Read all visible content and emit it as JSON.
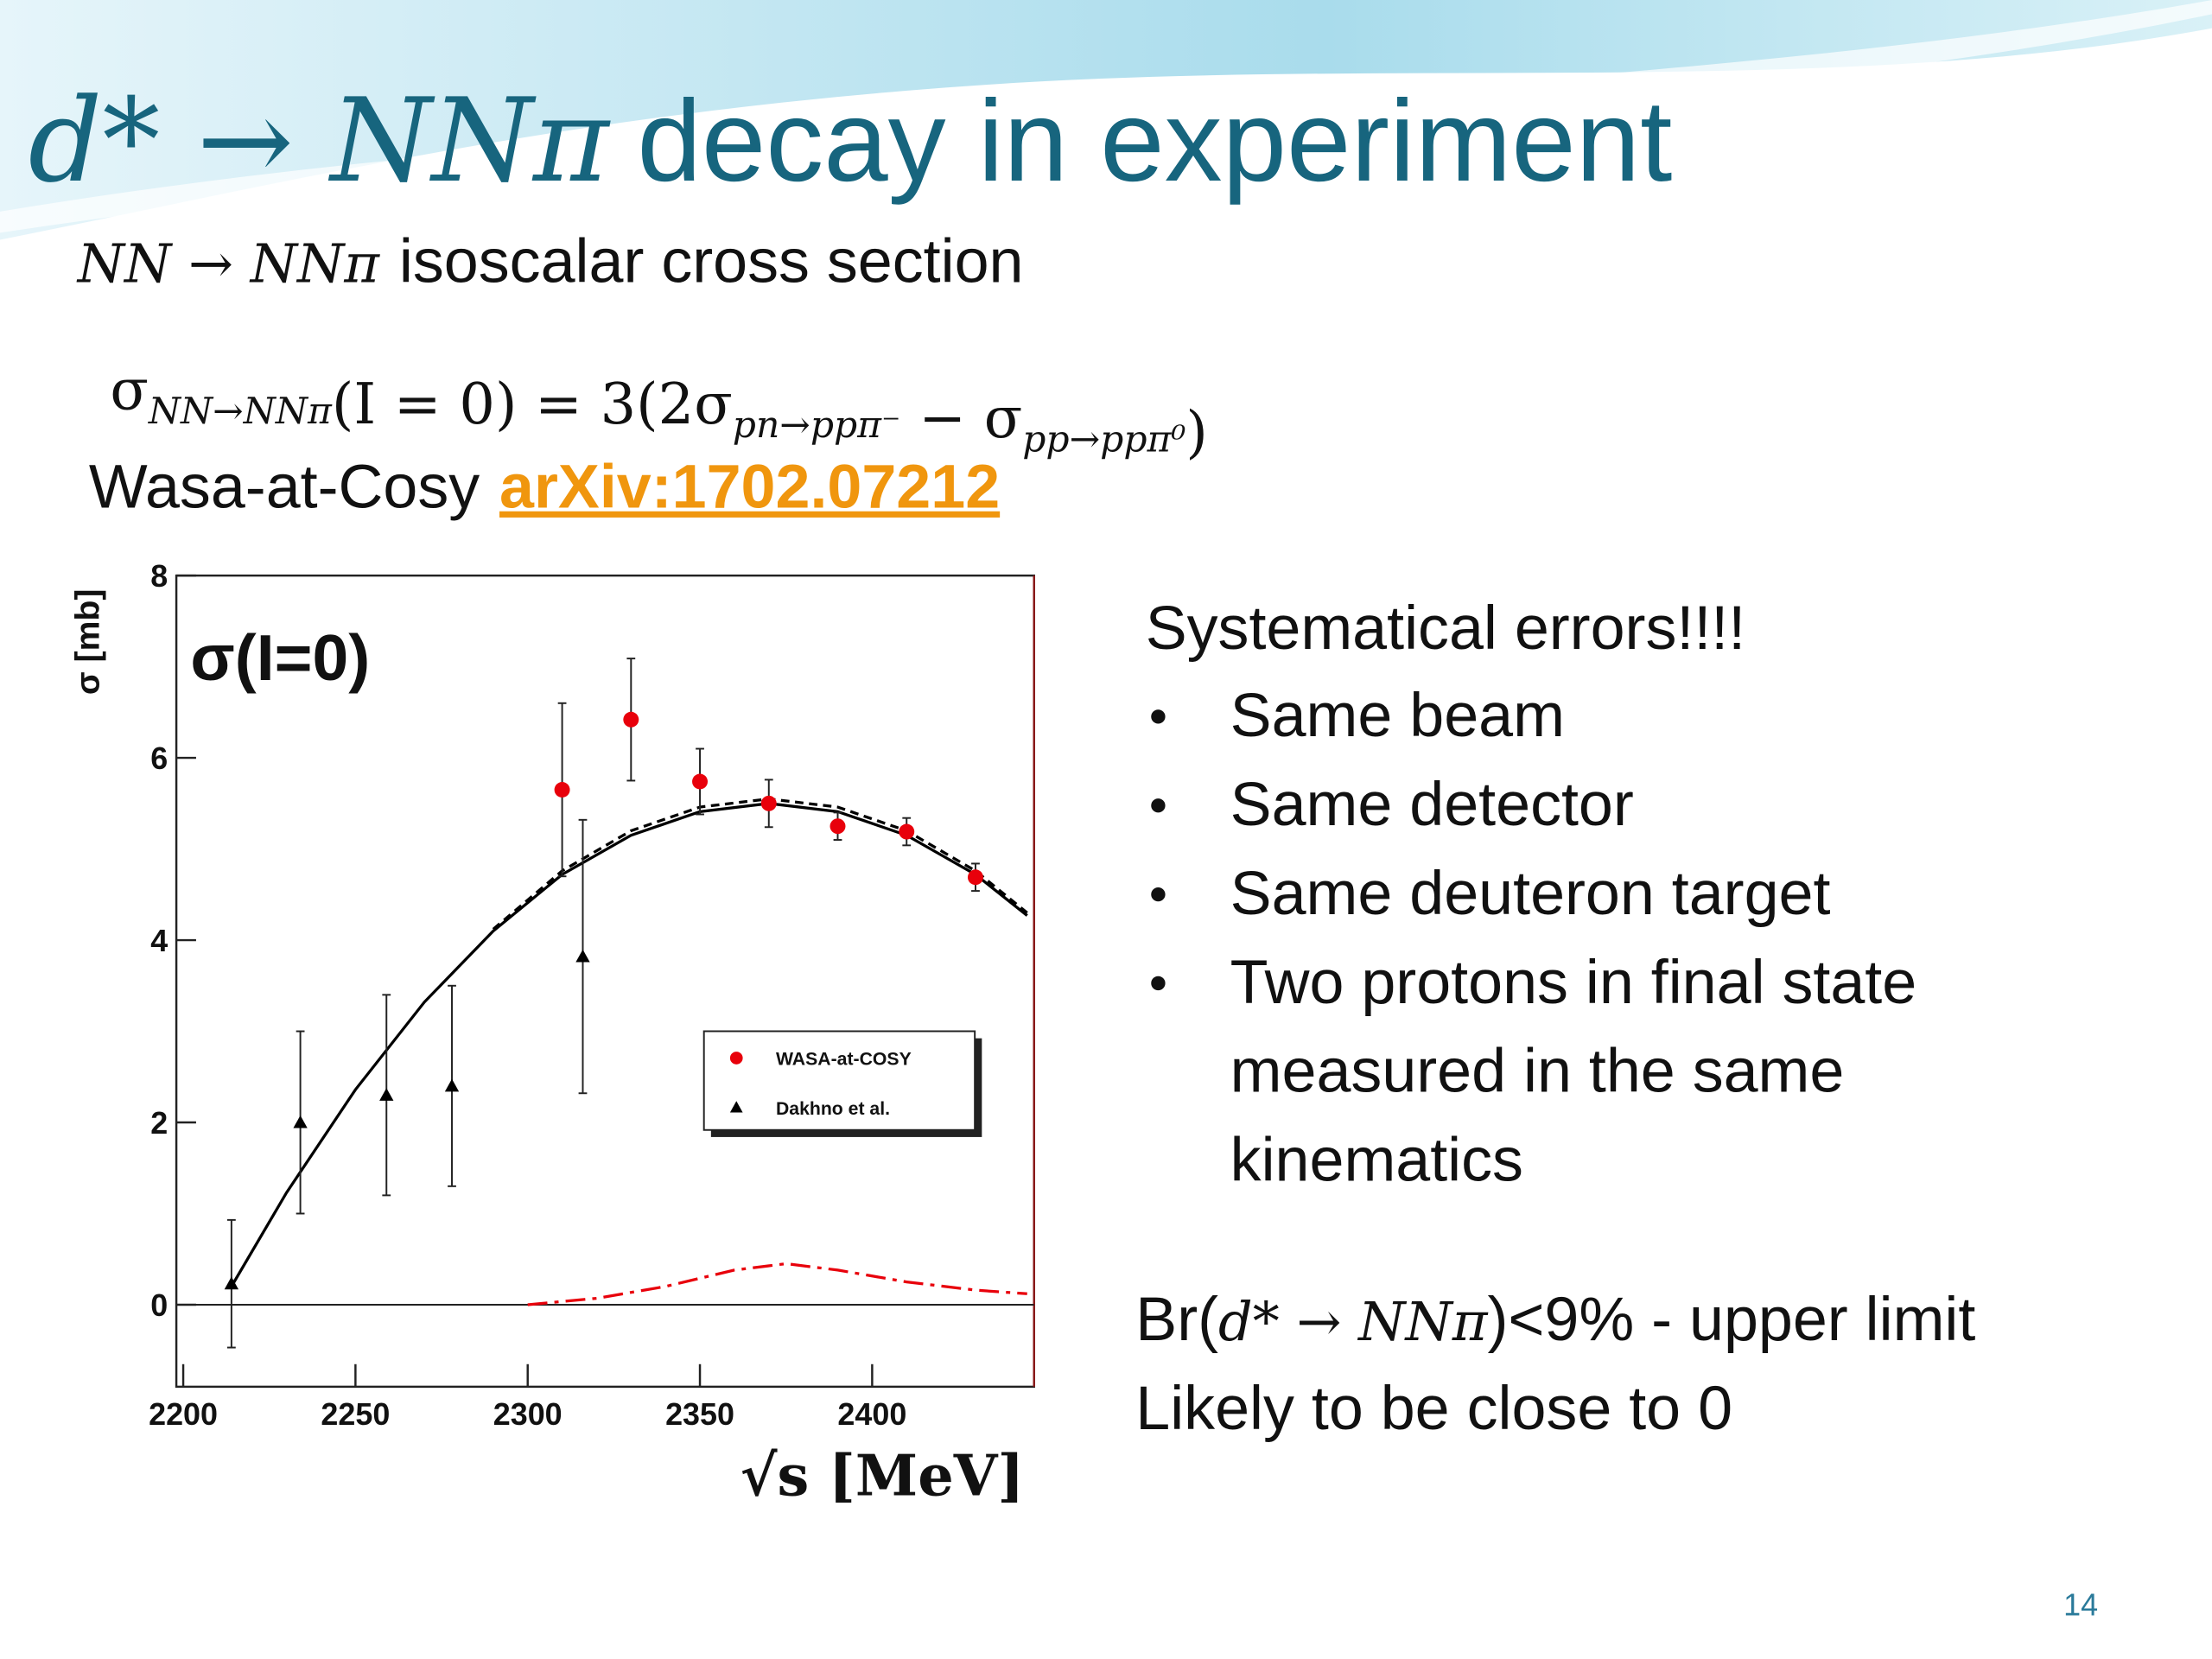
{
  "title": {
    "math": "d* → NNπ",
    "text": "decay in experiment"
  },
  "subtitle": {
    "math": "NN → NNπ",
    "text": "isoscalar cross section"
  },
  "formula": [
    {
      "text": "σ",
      "sub": "NN→NNπ"
    },
    {
      "text": "(I = 0) = 3(2σ",
      "sub": "pn→ppπ⁻"
    },
    {
      "text": " − σ",
      "sub": "pp→ppπ⁰"
    },
    {
      "text": ")"
    }
  ],
  "source": {
    "text": "Wasa-at-Cosy",
    "link": "arXiv:1702.07212"
  },
  "notes": {
    "heading": "Systematical errors!!!!",
    "bullets": [
      "Same beam",
      "Same detector",
      "Same deuteron target",
      "Two protons in final state",
      "measured in the same kinematics"
    ]
  },
  "conclusion": {
    "line1": [
      {
        "text": "Br("
      },
      {
        "math": "d* → NNπ"
      },
      {
        "text": ")<9% - upper limit"
      }
    ],
    "line2": "Likely to be close to 0"
  },
  "page_number": "14",
  "chart_data": {
    "type": "scatter",
    "annotation": "σ(I=0)",
    "x_label": "√s  [MeV]",
    "y_label": "σ [mb]",
    "xlim": [
      2198,
      2447
    ],
    "ylim": [
      -0.9,
      8
    ],
    "xticks": [
      2200,
      2250,
      2300,
      2350,
      2400
    ],
    "yticks": [
      0,
      2,
      4,
      6,
      8
    ],
    "series": [
      {
        "name": "WASA-at-COSY",
        "color": "#e8000b",
        "marker": "circle",
        "x": [
          2310,
          2330,
          2350,
          2370,
          2390,
          2410,
          2430
        ],
        "values": [
          5.65,
          6.42,
          5.74,
          5.5,
          5.25,
          5.19,
          4.69
        ],
        "errors": [
          0.95,
          0.67,
          0.36,
          0.26,
          0.15,
          0.15,
          0.15
        ]
      },
      {
        "name": "Dakhno et al.",
        "color": "#000000",
        "marker": "triangle",
        "x": [
          2214,
          2234,
          2259,
          2278,
          2316
        ],
        "values": [
          0.23,
          2.0,
          2.3,
          2.4,
          3.82
        ],
        "errors": [
          0.7,
          1.0,
          1.1,
          1.1,
          1.5
        ]
      }
    ],
    "curves": [
      {
        "color": "#000000",
        "dash": "solid",
        "x": [
          2214,
          2230,
          2250,
          2270,
          2290,
          2310,
          2330,
          2350,
          2370,
          2390,
          2410,
          2430,
          2445
        ],
        "values": [
          0.2,
          1.23,
          2.36,
          3.32,
          4.1,
          4.72,
          5.15,
          5.41,
          5.5,
          5.41,
          5.15,
          4.72,
          4.27
        ]
      },
      {
        "color": "#000000",
        "dash": "dashed",
        "x": [
          2290,
          2310,
          2330,
          2350,
          2370,
          2390,
          2410,
          2430,
          2445
        ],
        "values": [
          4.12,
          4.76,
          5.2,
          5.46,
          5.55,
          5.46,
          5.2,
          4.76,
          4.3
        ]
      },
      {
        "color": "#e8000b",
        "dash": "dashdot",
        "x": [
          2300,
          2320,
          2340,
          2360,
          2375,
          2390,
          2410,
          2430,
          2445
        ],
        "values": [
          0,
          0.07,
          0.2,
          0.38,
          0.45,
          0.38,
          0.25,
          0.16,
          0.12
        ]
      }
    ],
    "legend": "inside-right"
  }
}
